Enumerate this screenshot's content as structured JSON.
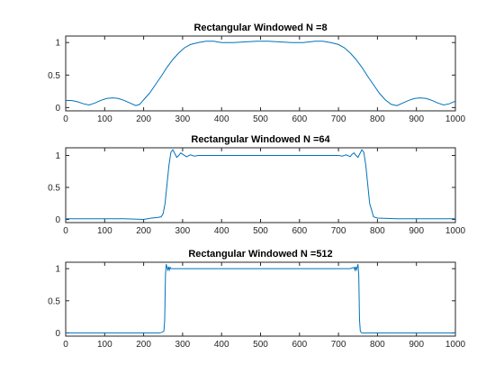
{
  "figure": {
    "background": "#ffffff"
  },
  "chart_data": [
    {
      "type": "line",
      "title": "Rectangular Windowed N =8",
      "xlabel": "",
      "ylabel": "",
      "xlim": [
        0,
        1000
      ],
      "ylim": [
        -0.05,
        1.1
      ],
      "xticks": [
        0,
        100,
        200,
        300,
        400,
        500,
        600,
        700,
        800,
        900,
        1000
      ],
      "yticks": [
        0,
        0.5,
        1
      ],
      "ytick_labels": [
        "0",
        "0.5",
        "1"
      ],
      "grid": false,
      "color": "#0072bd",
      "series": [
        {
          "x": [
            0,
            15,
            30,
            45,
            60,
            75,
            90,
            105,
            120,
            135,
            150,
            165,
            180,
            190,
            200,
            215,
            230,
            245,
            260,
            275,
            290,
            305,
            320,
            340,
            360,
            380,
            400,
            430,
            460,
            490,
            520,
            550,
            580,
            610,
            640,
            660,
            680,
            700,
            715,
            730,
            745,
            760,
            775,
            790,
            805,
            820,
            835,
            850,
            865,
            880,
            895,
            910,
            925,
            940,
            955,
            970,
            985,
            1000
          ],
          "y": [
            0.11,
            0.11,
            0.09,
            0.06,
            0.04,
            0.07,
            0.11,
            0.14,
            0.15,
            0.14,
            0.11,
            0.07,
            0.03,
            0.05,
            0.12,
            0.22,
            0.35,
            0.48,
            0.62,
            0.74,
            0.84,
            0.92,
            0.97,
            1.0,
            1.02,
            1.02,
            1.0,
            1.0,
            1.01,
            1.02,
            1.02,
            1.01,
            1.0,
            1.0,
            1.02,
            1.02,
            1.0,
            0.97,
            0.92,
            0.84,
            0.74,
            0.62,
            0.48,
            0.35,
            0.22,
            0.12,
            0.05,
            0.03,
            0.07,
            0.11,
            0.14,
            0.15,
            0.14,
            0.11,
            0.07,
            0.04,
            0.06,
            0.1
          ]
        }
      ]
    },
    {
      "type": "line",
      "title": "Rectangular Windowed N =64",
      "xlabel": "",
      "ylabel": "",
      "xlim": [
        0,
        1000
      ],
      "ylim": [
        -0.05,
        1.12
      ],
      "xticks": [
        0,
        100,
        200,
        300,
        400,
        500,
        600,
        700,
        800,
        900,
        1000
      ],
      "yticks": [
        0,
        0.5,
        1
      ],
      "ytick_labels": [
        "0",
        "0.5",
        "1"
      ],
      "grid": false,
      "color": "#0072bd",
      "series": [
        {
          "x": [
            0,
            50,
            100,
            150,
            200,
            220,
            235,
            245,
            250,
            255,
            260,
            265,
            270,
            275,
            280,
            285,
            290,
            295,
            300,
            310,
            320,
            330,
            340,
            350,
            400,
            450,
            500,
            550,
            600,
            650,
            700,
            710,
            720,
            730,
            735,
            740,
            745,
            750,
            755,
            760,
            765,
            770,
            775,
            780,
            790,
            800,
            850,
            900,
            950,
            1000
          ],
          "y": [
            0.01,
            0.01,
            0.01,
            0.01,
            0.0,
            0.02,
            0.03,
            0.04,
            0.09,
            0.25,
            0.55,
            0.85,
            1.05,
            1.09,
            1.03,
            0.97,
            1.0,
            1.04,
            1.02,
            0.98,
            1.01,
            0.99,
            1.0,
            1.0,
            1.0,
            1.0,
            1.0,
            1.0,
            1.0,
            1.0,
            1.0,
            0.99,
            1.01,
            0.98,
            1.02,
            1.04,
            1.0,
            0.97,
            1.03,
            1.09,
            1.05,
            0.85,
            0.55,
            0.25,
            0.04,
            0.02,
            0.01,
            0.01,
            0.01,
            0.01
          ]
        }
      ]
    },
    {
      "type": "line",
      "title": "Rectangular Windowed N =512",
      "xlabel": "",
      "ylabel": "",
      "xlim": [
        0,
        1000
      ],
      "ylim": [
        -0.05,
        1.1
      ],
      "xticks": [
        0,
        100,
        200,
        300,
        400,
        500,
        600,
        700,
        800,
        900,
        1000
      ],
      "yticks": [
        0,
        0.5,
        1
      ],
      "ytick_labels": [
        "0",
        "0.5",
        "1"
      ],
      "grid": false,
      "color": "#0072bd",
      "series": [
        {
          "x": [
            0,
            100,
            200,
            240,
            248,
            252,
            254,
            256,
            258,
            260,
            262,
            264,
            266,
            268,
            270,
            280,
            300,
            400,
            500,
            600,
            700,
            730,
            740,
            742,
            744,
            746,
            748,
            750,
            752,
            754,
            756,
            758,
            760,
            764,
            770,
            800,
            900,
            1000
          ],
          "y": [
            0.0,
            0.0,
            0.0,
            0.0,
            0.01,
            0.03,
            0.2,
            0.9,
            1.07,
            1.02,
            0.98,
            1.03,
            0.98,
            1.02,
            1.0,
            1.0,
            1.0,
            1.0,
            1.0,
            1.0,
            1.0,
            1.0,
            1.02,
            0.98,
            1.03,
            0.98,
            1.02,
            1.07,
            0.9,
            0.2,
            0.03,
            0.01,
            0.0,
            0.0,
            0.0,
            0.0,
            0.0,
            0.0
          ]
        }
      ]
    }
  ]
}
